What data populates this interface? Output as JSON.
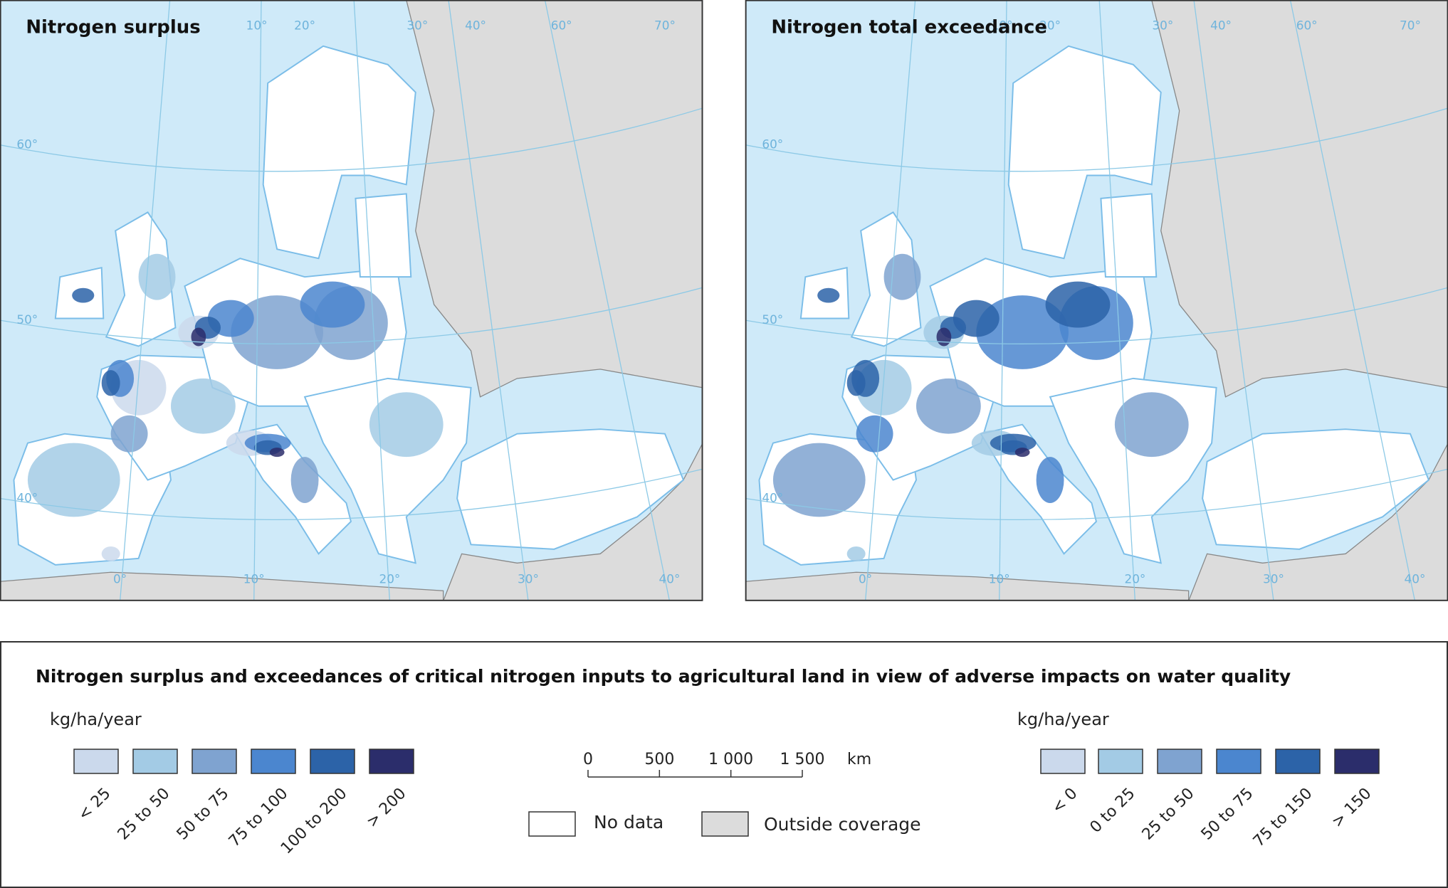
{
  "maps": [
    {
      "title": "Nitrogen surplus"
    },
    {
      "title": "Nitrogen total exceedance"
    }
  ],
  "graticule": {
    "top": [
      "10°",
      "20°",
      "30°",
      "40°",
      "60°",
      "70°"
    ],
    "left": [
      "60°",
      "50°",
      "40°"
    ],
    "bottom": [
      "0°",
      "10°",
      "20°",
      "30°",
      "40°"
    ]
  },
  "legend": {
    "title": "Nitrogen surplus and exceedances of critical nitrogen inputs to agricultural land in view of adverse impacts on water quality",
    "surplus": {
      "unit": "kg/ha/year",
      "classes": [
        {
          "label": "< 25",
          "color": "#cbd9ec"
        },
        {
          "label": "25 to 50",
          "color": "#a3cbe5"
        },
        {
          "label": "50 to 75",
          "color": "#7fa3d0"
        },
        {
          "label": "75 to 100",
          "color": "#4b86cf"
        },
        {
          "label": "100 to 200",
          "color": "#2c63a8"
        },
        {
          "label": "> 200",
          "color": "#2b2d6b"
        }
      ]
    },
    "exceedance": {
      "unit": "kg/ha/year",
      "classes": [
        {
          "label": "< 0",
          "color": "#cbd9ec"
        },
        {
          "label": "0 to 25",
          "color": "#a3cbe5"
        },
        {
          "label": "25 to 50",
          "color": "#7fa3d0"
        },
        {
          "label": "50 to 75",
          "color": "#4b86cf"
        },
        {
          "label": "75 to 150",
          "color": "#2c63a8"
        },
        {
          "label": "> 150",
          "color": "#2b2d6b"
        }
      ]
    },
    "scale_bar": {
      "ticks": [
        0,
        500,
        {
          "value": 1000,
          "label": "1 000"
        },
        {
          "value": 1500,
          "label": "1 500"
        }
      ],
      "unit": "km"
    },
    "no_data": {
      "label": "No data",
      "color": "#ffffff"
    },
    "outside_coverage": {
      "label": "Outside coverage",
      "color": "#dcdcdc"
    }
  }
}
